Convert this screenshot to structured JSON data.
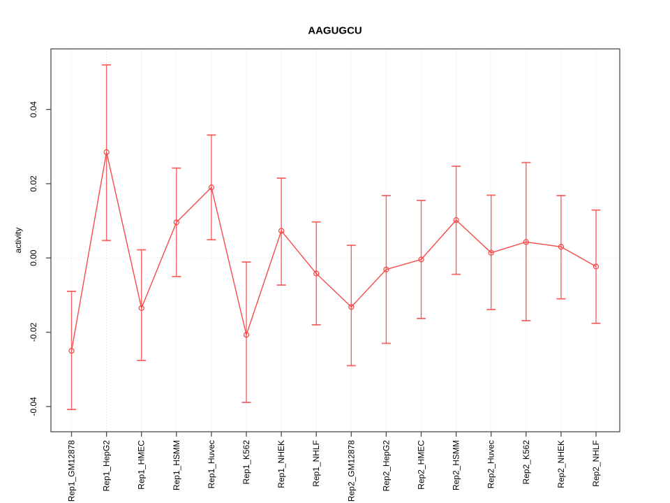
{
  "page": {
    "background": "#ffffff"
  },
  "chart_data": {
    "type": "line",
    "subtype": "points-with-error-bars",
    "title": "AAGUGCU",
    "xlabel": "",
    "ylabel": "activity",
    "legend": "none",
    "grid": {
      "vertical_at_categories": true,
      "horizontal_at_zero": true,
      "style": "dotted"
    },
    "ylim": [
      -0.0468,
      0.0563
    ],
    "ytick_values": [
      -0.04,
      -0.02,
      0.0,
      0.02,
      0.04
    ],
    "ytick_labels": [
      "-0.04",
      "-0.02",
      "0.00",
      "0.02",
      "0.04"
    ],
    "categories": [
      "Rep1_GM12878",
      "Rep1_HepG2",
      "Rep1_HMEC",
      "Rep1_HSMM",
      "Rep1_Huvec",
      "Rep1_K562",
      "Rep1_NHEK",
      "Rep1_NHLF",
      "Rep2_GM12878",
      "Rep2_HepG2",
      "Rep2_HMEC",
      "Rep2_HSMM",
      "Rep2_Huvec",
      "Rep2_K562",
      "Rep2_NHEK",
      "Rep2_NHLF"
    ],
    "series": [
      {
        "name": "activity",
        "marker": "open-circle",
        "values": [
          -0.025,
          0.0285,
          -0.0135,
          0.0096,
          0.019,
          -0.0207,
          0.0073,
          -0.0042,
          -0.0132,
          -0.0031,
          -0.0004,
          0.0102,
          0.0014,
          0.0043,
          0.003,
          -0.0023
        ],
        "error_low": [
          -0.0408,
          0.0047,
          -0.0276,
          -0.005,
          0.0049,
          -0.0389,
          -0.0073,
          -0.018,
          -0.029,
          -0.023,
          -0.0163,
          -0.0044,
          -0.0139,
          -0.0169,
          -0.011,
          -0.0176
        ],
        "error_high": [
          -0.009,
          0.052,
          0.0022,
          0.0242,
          0.0331,
          -0.0011,
          0.0215,
          0.0097,
          0.0034,
          0.0168,
          0.0155,
          0.0247,
          0.0169,
          0.0257,
          0.0168,
          0.0129
        ]
      }
    ],
    "colors": {
      "series": "#f64a4a",
      "grid": "#d9d9d9",
      "axis": "#4a4a4a",
      "text": "#000000"
    }
  }
}
